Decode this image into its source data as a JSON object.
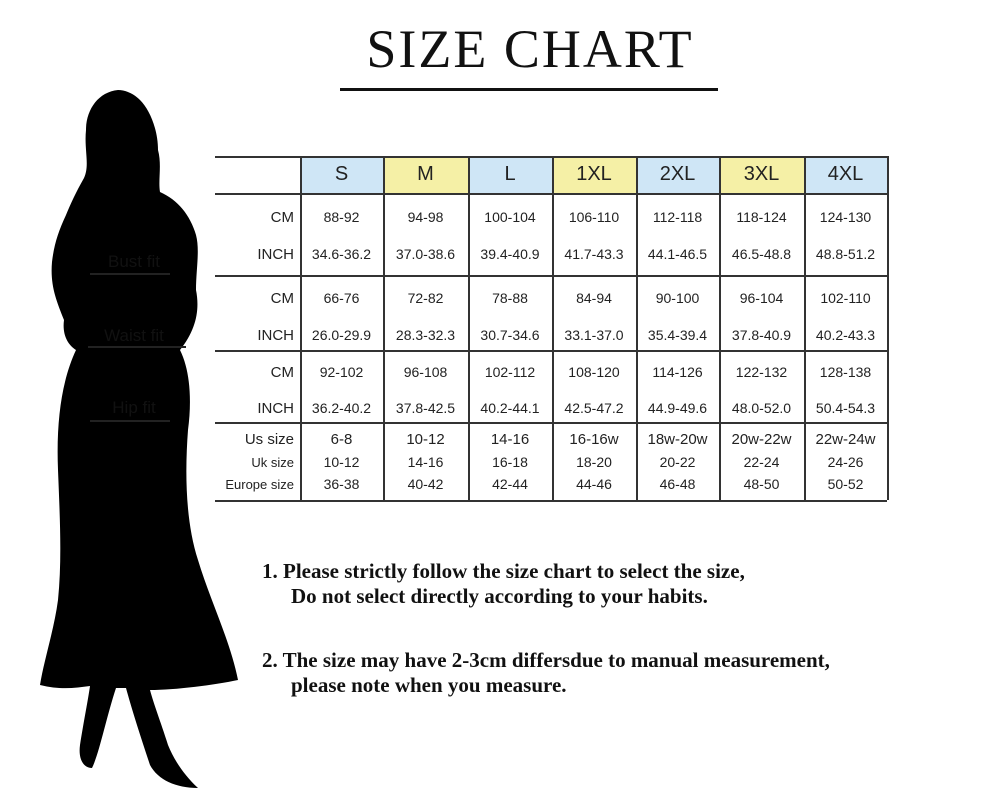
{
  "title": "SIZE CHART",
  "fit_labels": {
    "bust": "Bust fit",
    "waist": "Waist fit",
    "hip": "Hip fit"
  },
  "colors": {
    "blue_header": "#cfe6f6",
    "yellow_header": "#f5f0a6",
    "silhouette": "#000000"
  },
  "table": {
    "sizes": [
      {
        "label": "S",
        "color": "blue"
      },
      {
        "label": "M",
        "color": "yellow"
      },
      {
        "label": "L",
        "color": "blue"
      },
      {
        "label": "1XL",
        "color": "yellow"
      },
      {
        "label": "2XL",
        "color": "blue"
      },
      {
        "label": "3XL",
        "color": "yellow"
      },
      {
        "label": "4XL",
        "color": "blue"
      }
    ],
    "rows": [
      {
        "label": "CM",
        "values": [
          "88-92",
          "94-98",
          "100-104",
          "106-110",
          "112-118",
          "118-124",
          "124-130"
        ]
      },
      {
        "label": "INCH",
        "values": [
          "34.6-36.2",
          "37.0-38.6",
          "39.4-40.9",
          "41.7-43.3",
          "44.1-46.5",
          "46.5-48.8",
          "48.8-51.2"
        ]
      },
      {
        "label": "CM",
        "values": [
          "66-76",
          "72-82",
          "78-88",
          "84-94",
          "90-100",
          "96-104",
          "102-110"
        ]
      },
      {
        "label": "INCH",
        "values": [
          "26.0-29.9",
          "28.3-32.3",
          "30.7-34.6",
          "33.1-37.0",
          "35.4-39.4",
          "37.8-40.9",
          "40.2-43.3"
        ]
      },
      {
        "label": "CM",
        "values": [
          "92-102",
          "96-108",
          "102-112",
          "108-120",
          "114-126",
          "122-132",
          "128-138"
        ]
      },
      {
        "label": "INCH",
        "values": [
          "36.2-40.2",
          "37.8-42.5",
          "40.2-44.1",
          "42.5-47.2",
          "44.9-49.6",
          "48.0-52.0",
          "50.4-54.3"
        ]
      },
      {
        "label": "Us size",
        "values": [
          "6-8",
          "10-12",
          "14-16",
          "16-16w",
          "18w-20w",
          "20w-22w",
          "22w-24w"
        ]
      },
      {
        "label": "Uk size",
        "values": [
          "10-12",
          "14-16",
          "16-18",
          "18-20",
          "20-22",
          "22-24",
          "24-26"
        ]
      },
      {
        "label": "Europe size",
        "values": [
          "36-38",
          "40-42",
          "42-44",
          "44-46",
          "46-48",
          "48-50",
          "50-52"
        ]
      }
    ]
  },
  "notes": [
    {
      "num": "1.",
      "line1": "Please strictly follow the size chart to select the size,",
      "line2": "Do not select directly according to your habits."
    },
    {
      "num": "2.",
      "line1": "The size may have 2-3cm differsdue to manual measurement,",
      "line2": "please note when you measure."
    }
  ]
}
